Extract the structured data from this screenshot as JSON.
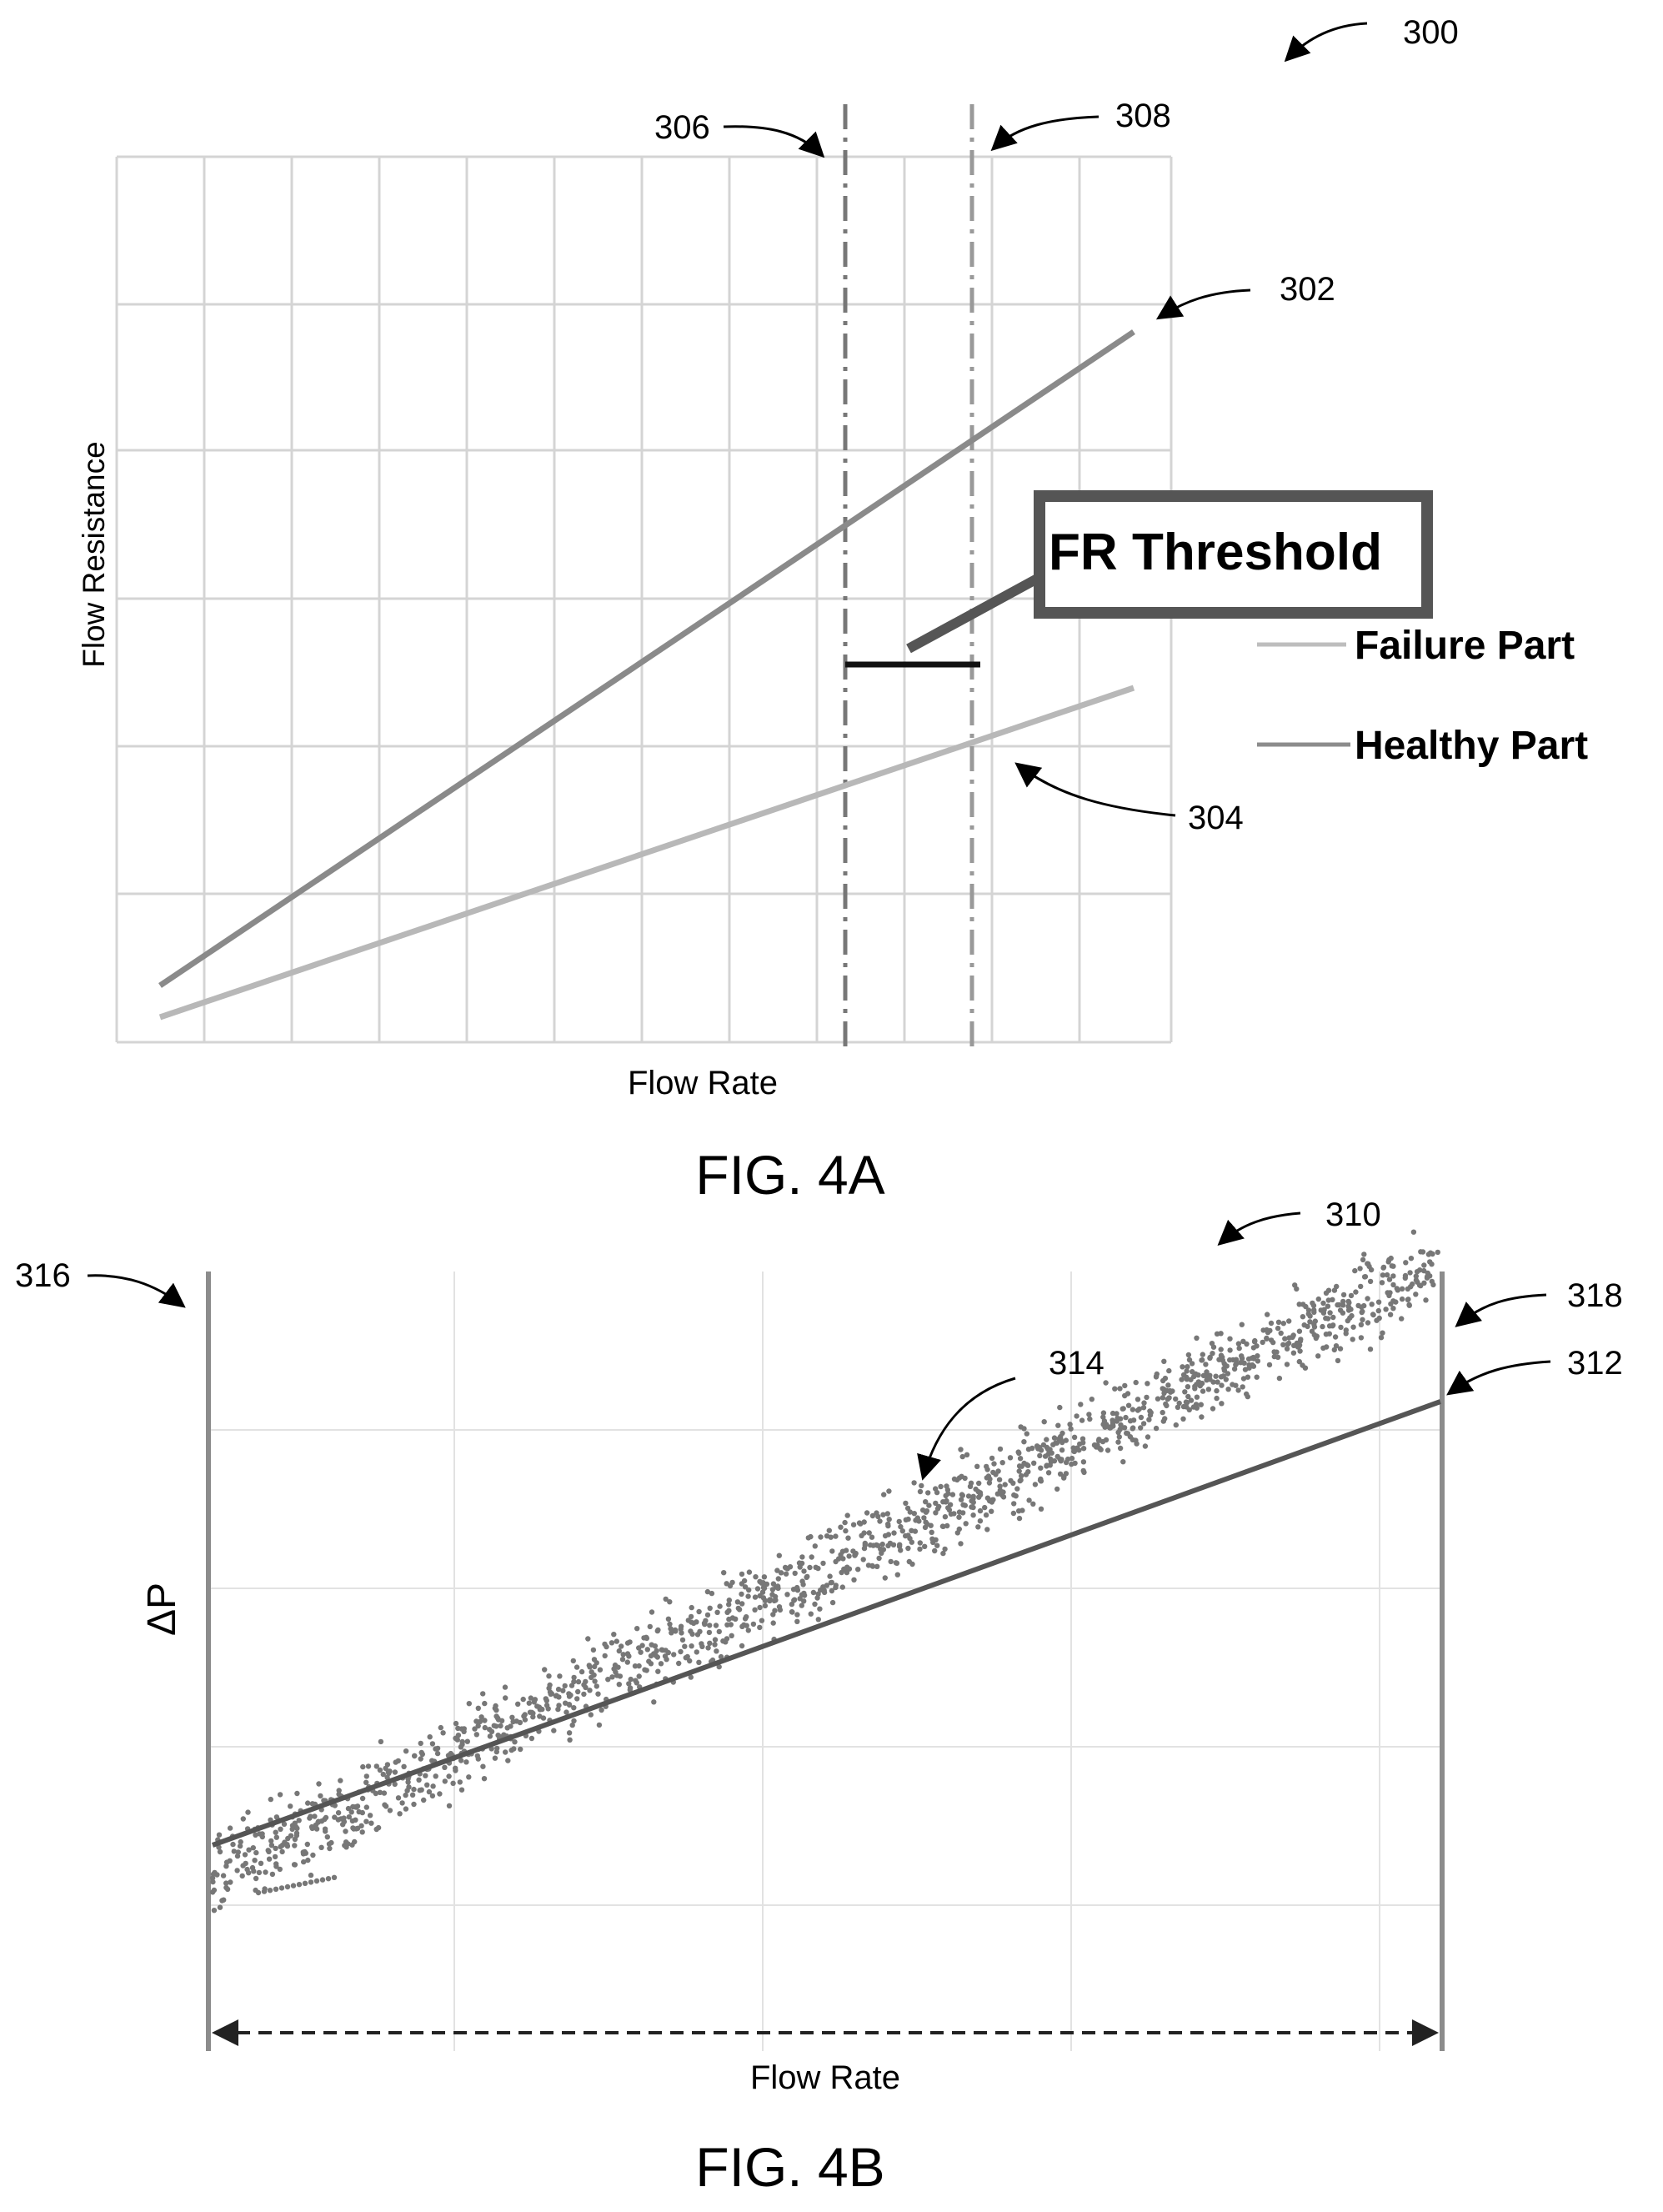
{
  "figure_4a": {
    "ref_figure": "300",
    "ref_failure_line": "302",
    "ref_healthy_line": "304",
    "ref_line_a": "306",
    "ref_line_b": "308",
    "ylabel": "Flow Resistance",
    "xlabel": "Flow Rate",
    "callout": "FR Threshold",
    "legend": [
      "Failure Part",
      "Healthy Part"
    ],
    "caption": "FIG. 4A"
  },
  "figure_4b": {
    "ref_figure": "310",
    "ref_fit_line": "312",
    "ref_scatter": "314",
    "ref_left_bound": "316",
    "ref_right_bound": "318",
    "ylabel": "ΔP",
    "xlabel": "Flow Rate",
    "caption": "FIG. 4B"
  },
  "colors": {
    "failure_line": "#8a8a8a",
    "healthy_line": "#b8b8b8",
    "grid": "#d4d4d4",
    "scatter_points": "#777777",
    "fit_line": "#555555",
    "boundary": "#8c8c8c"
  },
  "chart_data": [
    {
      "type": "line",
      "xlabel": "Flow Rate",
      "ylabel": "Flow Resistance",
      "grid": true,
      "series": [
        {
          "name": "Failure Part",
          "x": [
            0.05,
            0.96
          ],
          "y": [
            0.07,
            0.8
          ]
        },
        {
          "name": "Healthy Part",
          "x": [
            0.05,
            0.96
          ],
          "y": [
            0.03,
            0.4
          ]
        }
      ],
      "vertical_lines": [
        0.69,
        0.81
      ],
      "threshold_marker": {
        "x": [
          0.69,
          0.81
        ],
        "y": 0.43,
        "label": "FR Threshold"
      },
      "xlim": [
        0,
        1
      ],
      "ylim": [
        0,
        1
      ]
    },
    {
      "type": "scatter",
      "xlabel": "Flow Rate",
      "ylabel": "ΔP",
      "grid": true,
      "fit_line": {
        "x": [
          0.0,
          1.0
        ],
        "y": [
          0.26,
          0.85
        ]
      },
      "point_count": 1500,
      "xlim": [
        0,
        1
      ],
      "ylim": [
        0,
        1
      ],
      "bounds": [
        0.0,
        1.0
      ]
    }
  ]
}
